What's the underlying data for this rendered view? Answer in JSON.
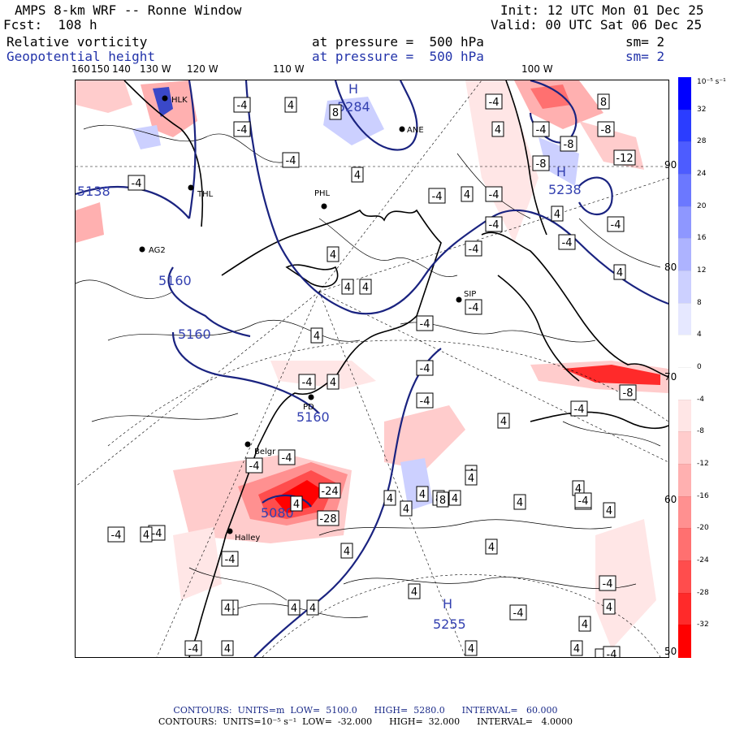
{
  "header": {
    "title": "AMPS 8-km WRF -- Ronne Window",
    "forecast": "Fcst:  108 h",
    "init": "Init: 12 UTC Mon 01 Dec 25",
    "valid": "Valid: 00 UTC Sat 06 Dec 25",
    "field1": {
      "name": "Relative vorticity",
      "level": "at pressure =  500 hPa",
      "sm": "sm= 2"
    },
    "field2": {
      "name": "Geopotential height",
      "level": "at pressure =  500 hPa",
      "sm": "sm= 2"
    }
  },
  "lon_labels": [
    "160",
    "150",
    "140",
    "130 W",
    "120 W",
    "110 W",
    "100 W"
  ],
  "lat_labels": [
    "90 N",
    "80 N",
    "70 N",
    "60 N",
    "50 N"
  ],
  "colorbar": {
    "unit": "10⁻⁵ s⁻¹",
    "ticks": [
      "32",
      "28",
      "24",
      "20",
      "16",
      "12",
      "8",
      "4",
      "0",
      "-4",
      "-8",
      "-12",
      "-16",
      "-20",
      "-24",
      "-28",
      "-32"
    ],
    "colors": [
      "#0000ff",
      "#2b3dff",
      "#4d5cff",
      "#6b78ff",
      "#8e97ff",
      "#adb3ff",
      "#ccd0ff",
      "#e6e8ff",
      "#ffffff",
      "#ffffff",
      "#ffe6e6",
      "#ffcccc",
      "#ffb0b0",
      "#ff9090",
      "#ff7070",
      "#ff4d4d",
      "#ff2a2a",
      "#ff0000"
    ]
  },
  "stations": [
    {
      "name": "HLK"
    },
    {
      "name": "THL"
    },
    {
      "name": "PHL"
    },
    {
      "name": "ANE"
    },
    {
      "name": "AG2"
    },
    {
      "name": "SIP"
    },
    {
      "name": "Belgr"
    },
    {
      "name": "Halley"
    },
    {
      "name": "PD"
    }
  ],
  "height_labels": [
    "5138",
    "5160",
    "5160",
    "5160",
    "5284",
    "5238",
    "5080",
    "5255"
  ],
  "high_markers": [
    "H",
    "H",
    "H"
  ],
  "vorticity_values": [
    "-4",
    "-4",
    "4",
    "8",
    "-4",
    "-4",
    "4",
    "-4",
    "8",
    "-4",
    "-8",
    "-8",
    "-8",
    "-8",
    "-12",
    "-4",
    "4",
    "-4",
    "4",
    "-4",
    "4",
    "-4",
    "4",
    "-4",
    "-4",
    "4",
    "4",
    "4",
    "-4",
    "-4",
    "4",
    "-4",
    "4",
    "-4",
    "-4",
    "-4",
    "-4",
    "4",
    "-4",
    "-8",
    "-4",
    "8",
    "-4",
    "-24",
    "-28",
    "-4",
    "4",
    "4",
    "8",
    "4",
    "4",
    "-4",
    "4",
    "4",
    "4",
    "4",
    "-4",
    "-4",
    "-4",
    "4",
    "4",
    "4",
    "-4",
    "4",
    "-8",
    "-8",
    "4",
    "-4",
    "-4",
    "4",
    "4",
    "4",
    "4",
    "4",
    "-4",
    "4",
    "4",
    "4",
    "4"
  ],
  "footer": {
    "line1": "CONTOURS:  UNITS=m  LOW=  5100.0      HIGH=  5280.0      INTERVAL=   60.000",
    "line2": "CONTOURS:  UNITS=10⁻⁵ s⁻¹  LOW=  -32.000      HIGH=  32.000      INTERVAL=   4.0000"
  },
  "colors": {
    "height_contour": "#1a2380",
    "positive_fill": "#ff3030",
    "negative_fill": "#8090e0"
  }
}
